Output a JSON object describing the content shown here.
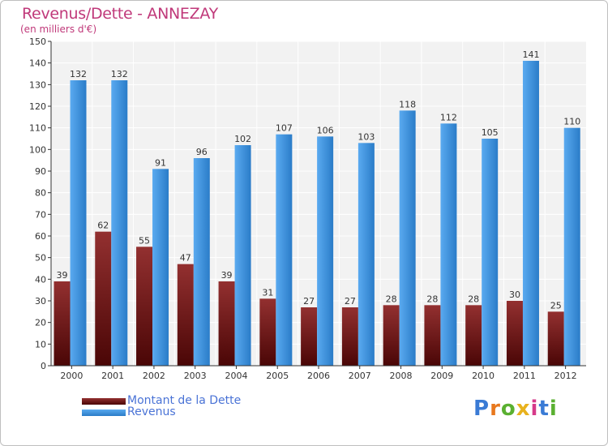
{
  "title": "Revenus/Dette - ANNEZAY",
  "subtitle": "(en milliers d'€)",
  "chart_data": {
    "type": "bar",
    "categories": [
      "2000",
      "2001",
      "2002",
      "2003",
      "2004",
      "2005",
      "2006",
      "2007",
      "2008",
      "2009",
      "2010",
      "2011",
      "2012"
    ],
    "series": [
      {
        "name": "Montant de la Dette",
        "color": "#7a1a1a",
        "values": [
          39,
          62,
          55,
          47,
          39,
          31,
          27,
          27,
          28,
          28,
          28,
          30,
          25
        ]
      },
      {
        "name": "Revenus",
        "color": "#3a93dd",
        "values": [
          132,
          132,
          91,
          96,
          102,
          107,
          106,
          103,
          118,
          112,
          105,
          141,
          110
        ]
      }
    ],
    "ylim": [
      0,
      150
    ],
    "ytick_step": 10,
    "grid": true,
    "legend": "bottom-left"
  },
  "logo": {
    "text": "Proxiti",
    "letter_colors": [
      "#3a7bd5",
      "#e8781e",
      "#5ab031",
      "#e8b21e",
      "#d63a8a",
      "#3a7bd5",
      "#5ab031"
    ]
  }
}
